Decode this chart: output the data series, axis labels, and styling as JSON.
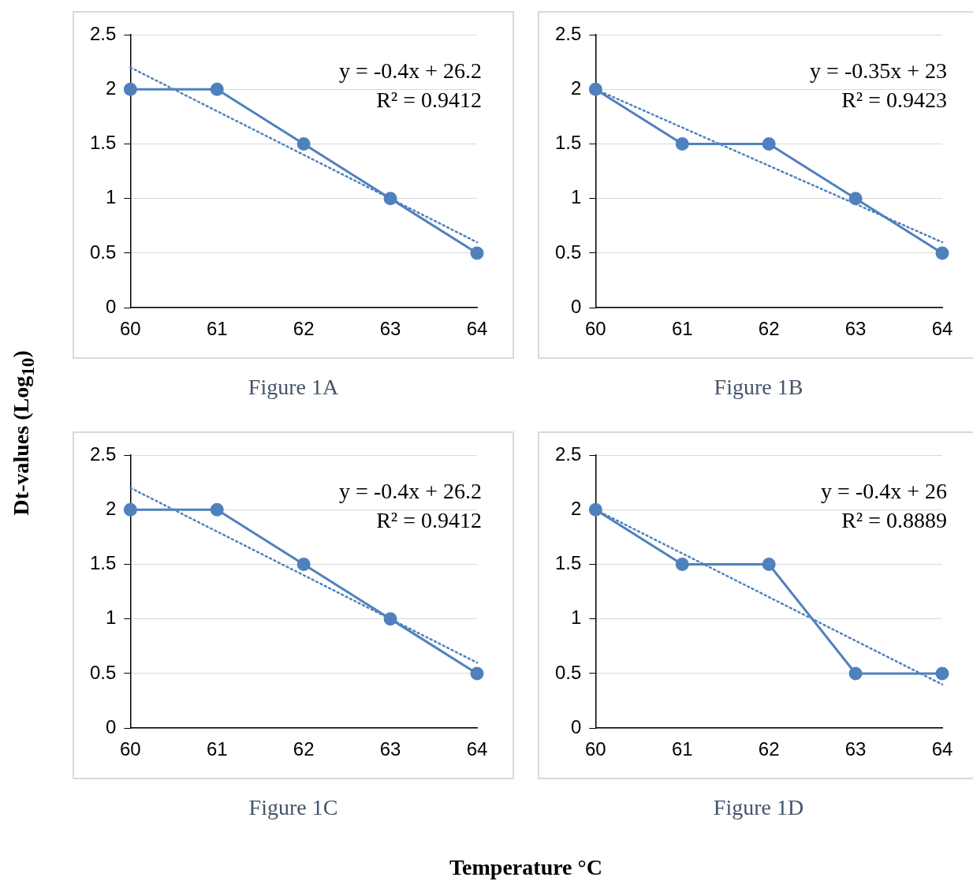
{
  "chart_data": [
    {
      "type": "line",
      "title": "Figure 1A",
      "ylabel": "Dt-values (Log$_{10}$)",
      "xlabel": "Temperature °C",
      "x": [
        60,
        61,
        62,
        63,
        64
      ],
      "xlim": [
        60,
        64
      ],
      "xticks": [
        60,
        61,
        62,
        63,
        64
      ],
      "ylim": [
        0,
        2.5
      ],
      "yticks": [
        0,
        0.5,
        1,
        1.5,
        2,
        2.5
      ],
      "grid": "y",
      "series": [
        {
          "color": "#4f81bd",
          "values": [
            2,
            2,
            1.5,
            1,
            0.5
          ],
          "marker": "circle",
          "line_style": "solid"
        },
        {
          "type": "line",
          "color": "#4f81bd",
          "values": [
            2.2,
            null,
            null,
            null,
            0.6
          ],
          "marker": "none",
          "line_style": "dotted"
        }
      ],
      "annotations": [
        "y = -0.4x + 26.2",
        "R² = 0.9412"
      ]
    },
    {
      "type": "line",
      "title": "Figure 1B",
      "x": [
        60,
        61,
        62,
        63,
        64
      ],
      "xlim": [
        60,
        64
      ],
      "xticks": [
        60,
        61,
        62,
        63,
        64
      ],
      "ylim": [
        0,
        2.5
      ],
      "yticks": [
        0,
        0.5,
        1,
        1.5,
        2,
        2.5
      ],
      "grid": "y",
      "series": [
        {
          "color": "#4f81bd",
          "values": [
            2,
            1.5,
            1.5,
            1,
            0.5
          ],
          "marker": "circle",
          "line_style": "solid"
        },
        {
          "type": "line",
          "color": "#4f81bd",
          "values": [
            2.0,
            null,
            null,
            null,
            0.6
          ],
          "marker": "none",
          "line_style": "dotted"
        }
      ],
      "annotations": [
        "y = -0.35x + 23",
        "R² = 0.9423"
      ]
    },
    {
      "type": "line",
      "title": "Figure 1C",
      "x": [
        60,
        61,
        62,
        63,
        64
      ],
      "xlim": [
        60,
        64
      ],
      "xticks": [
        60,
        61,
        62,
        63,
        64
      ],
      "ylim": [
        0,
        2.5
      ],
      "yticks": [
        0,
        0.5,
        1,
        1.5,
        2,
        2.5
      ],
      "grid": "y",
      "series": [
        {
          "color": "#4f81bd",
          "values": [
            2,
            2,
            1.5,
            1,
            0.5
          ],
          "marker": "circle",
          "line_style": "solid"
        },
        {
          "type": "line",
          "color": "#4f81bd",
          "values": [
            2.2,
            null,
            null,
            null,
            0.6
          ],
          "marker": "none",
          "line_style": "dotted"
        }
      ],
      "annotations": [
        "y = -0.4x + 26.2",
        "R² = 0.9412"
      ]
    },
    {
      "type": "line",
      "title": "Figure 1D",
      "x": [
        60,
        61,
        62,
        63,
        64
      ],
      "xlim": [
        60,
        64
      ],
      "xticks": [
        60,
        61,
        62,
        63,
        64
      ],
      "ylim": [
        0,
        2.5
      ],
      "yticks": [
        0,
        0.5,
        1,
        1.5,
        2,
        2.5
      ],
      "grid": "y",
      "series": [
        {
          "color": "#4f81bd",
          "values": [
            2,
            1.5,
            1.5,
            0.5,
            0.5
          ],
          "marker": "circle",
          "line_style": "solid"
        },
        {
          "type": "line",
          "color": "#4f81bd",
          "values": [
            2.0,
            null,
            null,
            null,
            0.4
          ],
          "marker": "none",
          "line_style": "dotted"
        }
      ],
      "annotations": [
        "y = -0.4x + 26",
        "R² = 0.8889"
      ]
    }
  ]
}
